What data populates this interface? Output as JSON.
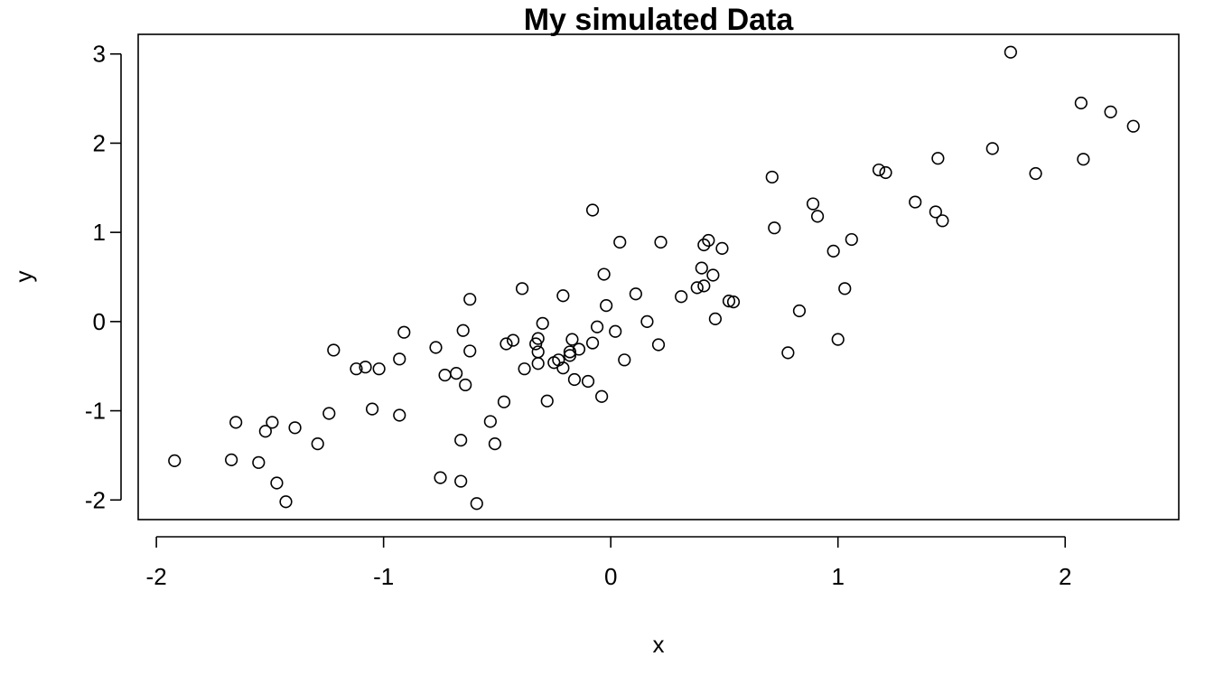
{
  "chart_data": {
    "type": "scatter",
    "title": "My simulated Data",
    "xlabel": "x",
    "ylabel": "y",
    "xlim": [
      -2.08,
      2.5
    ],
    "ylim": [
      -2.22,
      3.22
    ],
    "xticks": [
      -2,
      -1,
      0,
      1,
      2
    ],
    "yticks": [
      -2,
      -1,
      0,
      1,
      2,
      3
    ],
    "xtick_labels": [
      "-2",
      "-1",
      "0",
      "1",
      "2"
    ],
    "ytick_labels": [
      "-2",
      "-1",
      "0",
      "1",
      "2",
      "3"
    ],
    "grid": false,
    "legend": "none",
    "marker": "open-circle",
    "color": "#000000",
    "points": [
      [
        -1.92,
        -1.56
      ],
      [
        -1.67,
        -1.55
      ],
      [
        -1.65,
        -1.13
      ],
      [
        -1.55,
        -1.58
      ],
      [
        -1.52,
        -1.23
      ],
      [
        -1.49,
        -1.13
      ],
      [
        -1.47,
        -1.81
      ],
      [
        -1.43,
        -2.02
      ],
      [
        -1.39,
        -1.19
      ],
      [
        -1.29,
        -1.37
      ],
      [
        -1.24,
        -1.03
      ],
      [
        -1.22,
        -0.32
      ],
      [
        -1.12,
        -0.53
      ],
      [
        -1.08,
        -0.51
      ],
      [
        -1.05,
        -0.98
      ],
      [
        -1.02,
        -0.53
      ],
      [
        -0.93,
        -0.42
      ],
      [
        -0.93,
        -1.05
      ],
      [
        -0.91,
        -0.12
      ],
      [
        -0.77,
        -0.29
      ],
      [
        -0.75,
        -1.75
      ],
      [
        -0.73,
        -0.6
      ],
      [
        -0.68,
        -0.58
      ],
      [
        -0.66,
        -1.33
      ],
      [
        -0.66,
        -1.79
      ],
      [
        -0.65,
        -0.1
      ],
      [
        -0.64,
        -0.71
      ],
      [
        -0.62,
        -0.33
      ],
      [
        -0.62,
        0.25
      ],
      [
        -0.59,
        -2.04
      ],
      [
        -0.53,
        -1.12
      ],
      [
        -0.51,
        -1.37
      ],
      [
        -0.47,
        -0.9
      ],
      [
        -0.46,
        -0.25
      ],
      [
        -0.43,
        -0.21
      ],
      [
        -0.39,
        0.37
      ],
      [
        -0.38,
        -0.53
      ],
      [
        -0.33,
        -0.25
      ],
      [
        -0.32,
        -0.19
      ],
      [
        -0.32,
        -0.34
      ],
      [
        -0.32,
        -0.47
      ],
      [
        -0.3,
        -0.02
      ],
      [
        -0.28,
        -0.89
      ],
      [
        -0.25,
        -0.46
      ],
      [
        -0.23,
        -0.43
      ],
      [
        -0.21,
        -0.52
      ],
      [
        -0.21,
        0.29
      ],
      [
        -0.18,
        -0.34
      ],
      [
        -0.18,
        -0.38
      ],
      [
        -0.17,
        -0.2
      ],
      [
        -0.16,
        -0.65
      ],
      [
        -0.14,
        -0.31
      ],
      [
        -0.1,
        -0.67
      ],
      [
        -0.08,
        -0.24
      ],
      [
        -0.08,
        1.25
      ],
      [
        -0.06,
        -0.06
      ],
      [
        -0.04,
        -0.84
      ],
      [
        -0.03,
        0.53
      ],
      [
        -0.02,
        0.18
      ],
      [
        0.02,
        -0.11
      ],
      [
        0.04,
        0.89
      ],
      [
        0.06,
        -0.43
      ],
      [
        0.11,
        0.31
      ],
      [
        0.16,
        0.0
      ],
      [
        0.21,
        -0.26
      ],
      [
        0.22,
        0.89
      ],
      [
        0.31,
        0.28
      ],
      [
        0.38,
        0.38
      ],
      [
        0.4,
        0.6
      ],
      [
        0.41,
        0.86
      ],
      [
        0.41,
        0.4
      ],
      [
        0.43,
        0.91
      ],
      [
        0.45,
        0.52
      ],
      [
        0.46,
        0.03
      ],
      [
        0.49,
        0.82
      ],
      [
        0.52,
        0.23
      ],
      [
        0.54,
        0.22
      ],
      [
        0.71,
        1.62
      ],
      [
        0.72,
        1.05
      ],
      [
        0.78,
        -0.35
      ],
      [
        0.83,
        0.12
      ],
      [
        0.89,
        1.32
      ],
      [
        0.91,
        1.18
      ],
      [
        0.98,
        0.79
      ],
      [
        1.0,
        -0.2
      ],
      [
        1.03,
        0.37
      ],
      [
        1.06,
        0.92
      ],
      [
        1.18,
        1.7
      ],
      [
        1.21,
        1.67
      ],
      [
        1.34,
        1.34
      ],
      [
        1.43,
        1.23
      ],
      [
        1.44,
        1.83
      ],
      [
        1.46,
        1.13
      ],
      [
        1.68,
        1.94
      ],
      [
        1.76,
        3.02
      ],
      [
        1.87,
        1.66
      ],
      [
        2.07,
        2.45
      ],
      [
        2.08,
        1.82
      ],
      [
        2.2,
        2.35
      ],
      [
        2.3,
        2.19
      ]
    ]
  }
}
